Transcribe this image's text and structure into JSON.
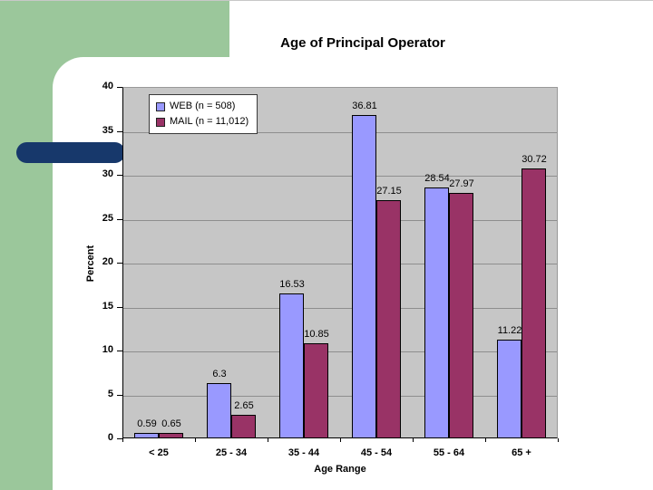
{
  "slide": {
    "colors": {
      "background_green": "#9BC79B",
      "accent_navy": "#17386B",
      "plot_background": "#C6C6C6",
      "gridline": "#8E8E8E",
      "web_bar": "#9999FF",
      "mail_bar": "#993366"
    }
  },
  "chart_data": {
    "type": "bar",
    "title": "Age of Principal Operator",
    "xlabel": "Age Range",
    "ylabel": "Percent",
    "ylim": [
      0,
      40
    ],
    "ytick_step": 5,
    "yticks": [
      "0",
      "5",
      "10",
      "15",
      "20",
      "25",
      "30",
      "35",
      "40"
    ],
    "grid": true,
    "legend_position": "top-left-inside",
    "categories": [
      "< 25",
      "25 - 34",
      "35 - 44",
      "45 - 54",
      "55 - 64",
      "65 +"
    ],
    "series": [
      {
        "name": "WEB (n = 508)",
        "color": "#9999FF",
        "values": [
          0.59,
          6.3,
          16.53,
          36.81,
          28.54,
          11.22
        ],
        "labels": [
          "0.59",
          "6.3",
          "16.53",
          "36.81",
          "28.54",
          "11.22"
        ]
      },
      {
        "name": "MAIL (n = 11,012)",
        "color": "#993366",
        "values": [
          0.65,
          2.65,
          10.85,
          27.15,
          27.97,
          30.72
        ],
        "labels": [
          "0.65",
          "2.65",
          "10.85",
          "27.15",
          "27.97",
          "30.72"
        ]
      }
    ]
  }
}
